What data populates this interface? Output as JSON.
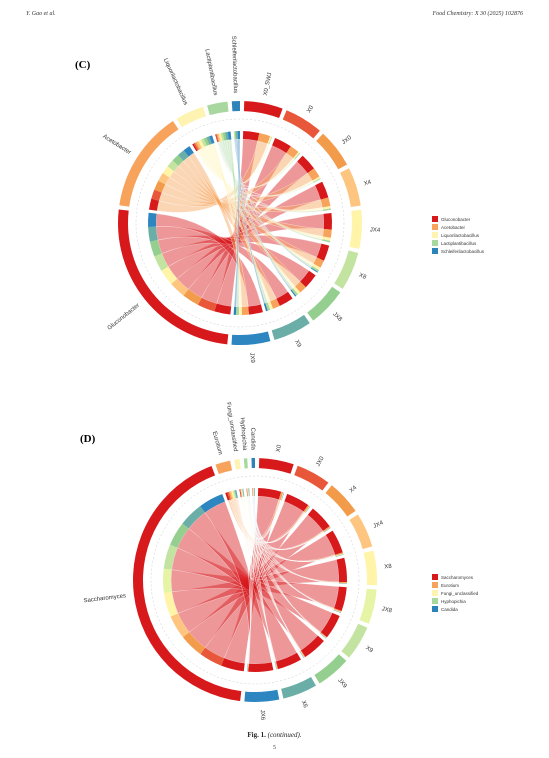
{
  "header": {
    "left": "Y. Gao et al.",
    "right": "Food Chemistry: X 30 (2025) 102876"
  },
  "caption": {
    "label": "Fig. 1.",
    "text": "(continued)."
  },
  "page_number": "5",
  "chart_data": [
    {
      "type": "chord",
      "panel_label": "(C)",
      "samples": [
        "X0_SWJ",
        "X0",
        "JX0",
        "X4",
        "JX4",
        "X8",
        "JX8",
        "X9",
        "JX9"
      ],
      "sample_colors": [
        "#d7191c",
        "#e8573a",
        "#f29b4b",
        "#fdc57f",
        "#fff4a8",
        "#c3e3a1",
        "#95cf8f",
        "#6aaea7",
        "#2e86c1"
      ],
      "taxa": [
        "Gluconobacter",
        "Acetobacter",
        "Liquorilactobacillus",
        "Lactiplantibacillus",
        "Schleiferilactobacillus"
      ],
      "taxa_colors": [
        "#d7191c",
        "#f7a35c",
        "#fef3b0",
        "#a8d89f",
        "#2b83ba"
      ],
      "ring_taxa": [
        "Gluconobacter",
        "Acetobacter",
        "Liquorilactobacillus",
        "Lactiplantibacillus",
        "Schleiferilactobacillus"
      ],
      "legend": [
        "Gluconobacter",
        "Acetobacter",
        "Liquorilactobacillus",
        "Lactiplantibacillus",
        "Schleiferilactobacillus"
      ],
      "flows": [
        [
          55,
          38,
          5,
          2,
          0
        ],
        [
          60,
          32,
          5,
          3,
          0
        ],
        [
          58,
          33,
          6,
          3,
          0
        ],
        [
          57,
          30,
          8,
          5,
          0
        ],
        [
          56,
          28,
          10,
          6,
          0
        ],
        [
          54,
          26,
          10,
          7,
          3
        ],
        [
          52,
          26,
          10,
          8,
          4
        ],
        [
          50,
          25,
          10,
          9,
          6
        ],
        [
          48,
          24,
          10,
          10,
          8
        ]
      ]
    },
    {
      "type": "chord",
      "panel_label": "(D)",
      "samples": [
        "X0",
        "JX0",
        "X4",
        "JX4",
        "X8",
        "JX8",
        "X9",
        "JX9",
        "X6",
        "JX6"
      ],
      "sample_colors": [
        "#d7191c",
        "#e8573a",
        "#f29b4b",
        "#fdc57f",
        "#fff4a8",
        "#e6f4a6",
        "#c3e3a1",
        "#95cf8f",
        "#6aaea7",
        "#2e86c1"
      ],
      "taxa": [
        "Saccharomyces",
        "Eurotium",
        "Fungi_unclassified",
        "Hyphopichia",
        "Candida"
      ],
      "taxa_colors": [
        "#d7191c",
        "#f7a35c",
        "#fef3b0",
        "#a8d89f",
        "#2b83ba"
      ],
      "ring_taxa": [
        "Saccharomyces",
        "Eurotium",
        "Fungi_unclassified",
        "Hyphopichia",
        "Candida"
      ],
      "legend": [
        "Saccharomyces",
        "Eurotium",
        "Fungi_unclassified",
        "Hyphopichia",
        "Candida"
      ],
      "flows": [
        [
          88,
          8,
          2,
          1,
          1
        ],
        [
          90,
          6,
          2,
          1,
          1
        ],
        [
          92,
          5,
          1,
          1,
          1
        ],
        [
          91,
          5,
          2,
          1,
          1
        ],
        [
          93,
          4,
          1,
          1,
          1
        ],
        [
          92,
          4,
          2,
          1,
          1
        ],
        [
          94,
          3,
          1,
          1,
          1
        ],
        [
          93,
          3,
          2,
          1,
          1
        ],
        [
          94,
          3,
          1,
          1,
          1
        ],
        [
          95,
          2,
          1,
          1,
          1
        ]
      ]
    }
  ]
}
